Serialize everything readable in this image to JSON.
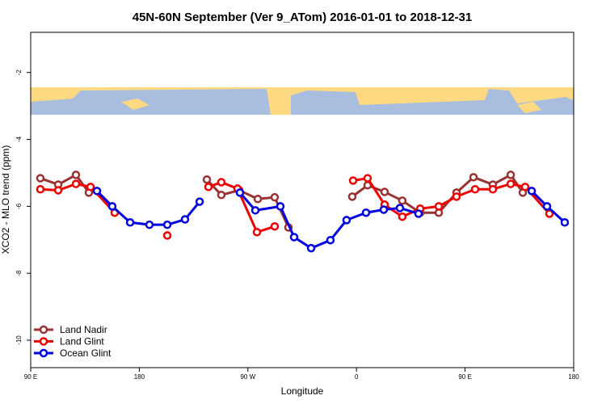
{
  "chart_data": {
    "type": "line",
    "title": "45N-60N September (Ver 9_ATom)   2016-01-01 to 2018-12-31",
    "x_label": "Longitude",
    "y_label": "XCO2 - MLO trend (ppm)",
    "xlim": [
      90,
      540
    ],
    "ylim": [
      -10.82,
      -0.8
    ],
    "xticks": [
      {
        "value": 90,
        "label": "90 E"
      },
      180,
      {
        "value": 270,
        "label": "90 W"
      },
      {
        "value": 360,
        "label": "0"
      },
      {
        "value": 450,
        "label": "90 E"
      },
      {
        "value": 540,
        "label": "180"
      }
    ],
    "yticks": [
      -10,
      -8,
      -6,
      -4,
      -2
    ],
    "legend": "bottom-left",
    "series": [
      {
        "name": "Land Nadir",
        "color": "#993333",
        "x": [
          98.0,
          112.8,
          127.5,
          138.2,
          null,
          236.0,
          248.0,
          262.8,
          278.2,
          292.2,
          303.6,
          null,
          356.5,
          369.2,
          383.3,
          398.0,
          412.8,
          428.2,
          442.9,
          457.0,
          473.0,
          487.8,
          497.8
        ],
        "values": [
          -5.16,
          -5.35,
          -5.06,
          -5.59,
          null,
          -5.2,
          -5.66,
          -5.52,
          -5.78,
          -5.73,
          -6.63,
          null,
          -5.71,
          -5.37,
          -5.57,
          -5.83,
          -6.19,
          -6.19,
          -5.59,
          -5.13,
          -5.35,
          -5.06,
          -5.59
        ]
      },
      {
        "name": "Land Glint",
        "color": "#ee0000",
        "x": [
          98.0,
          112.8,
          127.5,
          139.6,
          159.6,
          null,
          203.2,
          null,
          237.3,
          248.0,
          261.4,
          277.5,
          292.2,
          null,
          357.2,
          369.2,
          383.3,
          398.0,
          412.8,
          428.2,
          442.9,
          458.3,
          473.0,
          487.8,
          499.8,
          519.9
        ],
        "values": [
          -5.49,
          -5.52,
          -5.33,
          -5.42,
          -6.19,
          null,
          -6.87,
          null,
          -5.42,
          -5.28,
          -5.47,
          -6.77,
          -6.6,
          null,
          -5.23,
          -5.16,
          -5.95,
          -6.31,
          -6.07,
          -6.0,
          -5.71,
          -5.49,
          -5.49,
          -5.33,
          -5.42,
          -6.22
        ]
      },
      {
        "name": "Ocean Glint",
        "color": "#0000dd",
        "x": [
          144.9,
          157.6,
          172.4,
          188.4,
          203.2,
          217.9,
          230.0,
          null,
          263.4,
          276.2,
          296.9,
          308.3,
          322.4,
          338.4,
          351.8,
          367.9,
          382.6,
          396.0,
          411.4,
          null,
          505.2,
          517.9,
          532.6
        ],
        "values": [
          -5.54,
          -6.0,
          -6.48,
          -6.55,
          -6.55,
          -6.39,
          -5.86,
          null,
          -5.59,
          -6.12,
          -6.0,
          -6.92,
          -7.25,
          -7.01,
          -6.41,
          -6.19,
          -6.1,
          -6.05,
          -6.22,
          null,
          -5.54,
          -6.0,
          -6.48
        ]
      }
    ]
  }
}
